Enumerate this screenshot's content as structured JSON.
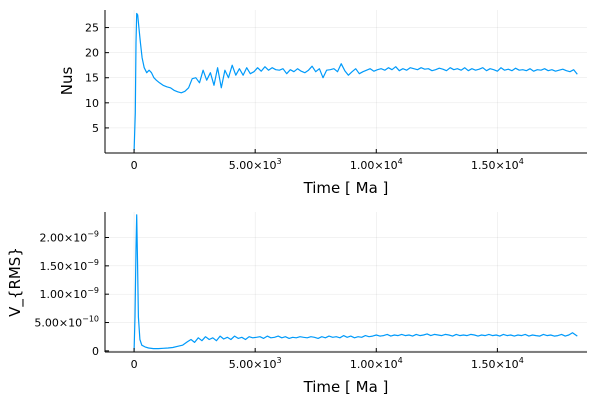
{
  "chart_data": [
    {
      "type": "line",
      "ylabel": "Nus",
      "xlabel": "Time [ Ma ]",
      "series_color": "#009AFA",
      "xlim": [
        -1200,
        18700
      ],
      "ylim": [
        0,
        28.5
      ],
      "grid": true,
      "legend": "none",
      "x_ticks": [
        {
          "value": 0,
          "mant": "0",
          "exp": ""
        },
        {
          "value": 5000,
          "mant": "5.00×10",
          "exp": "3"
        },
        {
          "value": 10000,
          "mant": "1.00×10",
          "exp": "4"
        },
        {
          "value": 15000,
          "mant": "1.50×10",
          "exp": "4"
        }
      ],
      "y_ticks": [
        {
          "value": 5,
          "mant": "5",
          "exp": ""
        },
        {
          "value": 10,
          "mant": "10",
          "exp": ""
        },
        {
          "value": 15,
          "mant": "15",
          "exp": ""
        },
        {
          "value": 20,
          "mant": "20",
          "exp": ""
        },
        {
          "value": 25,
          "mant": "25",
          "exp": ""
        }
      ],
      "x": [
        0,
        50,
        80,
        110,
        150,
        200,
        260,
        330,
        420,
        520,
        620,
        720,
        820,
        920,
        1050,
        1200,
        1350,
        1500,
        1650,
        1800,
        1950,
        2100,
        2250,
        2400,
        2550,
        2700,
        2850,
        3000,
        3150,
        3300,
        3450,
        3600,
        3750,
        3900,
        4050,
        4200,
        4350,
        4500,
        4650,
        4800,
        4950,
        5100,
        5250,
        5400,
        5550,
        5700,
        5850,
        6000,
        6150,
        6300,
        6450,
        6600,
        6750,
        6900,
        7050,
        7200,
        7350,
        7500,
        7650,
        7800,
        7950,
        8100,
        8250,
        8400,
        8550,
        8700,
        8850,
        9000,
        9150,
        9300,
        9450,
        9600,
        9750,
        9900,
        10050,
        10200,
        10350,
        10500,
        10650,
        10800,
        10950,
        11100,
        11250,
        11400,
        11550,
        11700,
        11850,
        12000,
        12150,
        12300,
        12450,
        12600,
        12750,
        12900,
        13050,
        13200,
        13350,
        13500,
        13650,
        13800,
        13950,
        14100,
        14250,
        14400,
        14550,
        14700,
        14850,
        15000,
        15150,
        15300,
        15450,
        15600,
        15750,
        15900,
        16050,
        16200,
        16350,
        16500,
        16650,
        16800,
        16950,
        17100,
        17250,
        17400,
        17550,
        17700,
        17850,
        18000,
        18150,
        18300
      ],
      "y": [
        0.5,
        8,
        22,
        27.8,
        27.5,
        25,
        22,
        19,
        17,
        16,
        16.5,
        16,
        15,
        14.5,
        14,
        13.5,
        13.2,
        13,
        12.5,
        12.2,
        12,
        12.3,
        13,
        14.8,
        15,
        14,
        16.5,
        14.5,
        16,
        13.5,
        17,
        13,
        16.5,
        15,
        17.5,
        15.5,
        16.8,
        15.5,
        17,
        15.8,
        16.2,
        17,
        16.3,
        17.2,
        16.5,
        17,
        16.6,
        16.5,
        16.8,
        15.8,
        16.6,
        16.2,
        16.8,
        16.3,
        16,
        16.5,
        17.3,
        16.2,
        16.8,
        15,
        16.5,
        16.6,
        16.8,
        16.2,
        17.8,
        16.4,
        15.5,
        16.2,
        16.8,
        15.8,
        16.2,
        16.5,
        16.8,
        16.3,
        16.6,
        16.8,
        16.5,
        17,
        16.6,
        17.2,
        16.4,
        16.8,
        16.5,
        17,
        16.8,
        16.6,
        17,
        16.7,
        16.8,
        16.4,
        16.6,
        16.9,
        16.7,
        16.4,
        17,
        16.6,
        16.8,
        16.5,
        17,
        16.4,
        16.8,
        16.5,
        16.7,
        17,
        16.4,
        16.8,
        16.6,
        16.3,
        17,
        16.5,
        16.7,
        16.4,
        16.9,
        16.5,
        16.6,
        16.4,
        16.8,
        16.3,
        16.6,
        16.5,
        16.8,
        16.4,
        16.6,
        16.3,
        16.5,
        16.7,
        16.4,
        16.2,
        16.6,
        15.7
      ]
    },
    {
      "type": "line",
      "ylabel": "V_{RMS}",
      "xlabel": "Time [ Ma ]",
      "series_color": "#009AFA",
      "xlim": [
        -1200,
        18700
      ],
      "ylim": [
        -2e-11,
        2.45e-09
      ],
      "grid": true,
      "legend": "none",
      "x_ticks": [
        {
          "value": 0,
          "mant": "0",
          "exp": ""
        },
        {
          "value": 5000,
          "mant": "5.00×10",
          "exp": "3"
        },
        {
          "value": 10000,
          "mant": "1.00×10",
          "exp": "4"
        },
        {
          "value": 15000,
          "mant": "1.50×10",
          "exp": "4"
        }
      ],
      "y_ticks": [
        {
          "value": 0,
          "mant": "0",
          "exp": ""
        },
        {
          "value": 5e-10,
          "mant": "5.00×10",
          "exp": "−10"
        },
        {
          "value": 1e-09,
          "mant": "1.00×10",
          "exp": "−9"
        },
        {
          "value": 1.5e-09,
          "mant": "1.50×10",
          "exp": "−9"
        },
        {
          "value": 2e-09,
          "mant": "2.00×10",
          "exp": "−9"
        }
      ],
      "x": [
        0,
        40,
        80,
        110,
        140,
        180,
        240,
        320,
        450,
        600,
        800,
        1000,
        1200,
        1400,
        1600,
        1800,
        2000,
        2200,
        2350,
        2500,
        2650,
        2800,
        2950,
        3100,
        3250,
        3400,
        3550,
        3700,
        3850,
        4000,
        4150,
        4300,
        4450,
        4600,
        4750,
        4900,
        5050,
        5200,
        5350,
        5500,
        5650,
        5800,
        5950,
        6100,
        6250,
        6400,
        6550,
        6700,
        6850,
        7000,
        7150,
        7300,
        7450,
        7600,
        7750,
        7900,
        8050,
        8200,
        8350,
        8500,
        8650,
        8800,
        8950,
        9100,
        9250,
        9400,
        9550,
        9700,
        9850,
        10000,
        10150,
        10300,
        10450,
        10600,
        10750,
        10900,
        11050,
        11200,
        11350,
        11500,
        11650,
        11800,
        11950,
        12100,
        12250,
        12400,
        12550,
        12700,
        12850,
        13000,
        13150,
        13300,
        13450,
        13600,
        13750,
        13900,
        14050,
        14200,
        14350,
        14500,
        14650,
        14800,
        14950,
        15100,
        15250,
        15400,
        15550,
        15700,
        15850,
        16000,
        16150,
        16300,
        16450,
        16600,
        16750,
        16900,
        17050,
        17200,
        17350,
        17500,
        17650,
        17800,
        17950,
        18100,
        18300
      ],
      "y": [
        1e-11,
        6e-10,
        1.8e-09,
        2.4e-09,
        1.6e-09,
        6e-10,
        2e-10,
        1e-10,
        7e-11,
        5e-11,
        4e-11,
        4e-11,
        4.5e-11,
        5e-11,
        6e-11,
        8e-11,
        1e-10,
        1.6e-10,
        2e-10,
        1.5e-10,
        2.3e-10,
        1.8e-10,
        2.5e-10,
        2e-10,
        2.3e-10,
        1.8e-10,
        2.6e-10,
        2.1e-10,
        2.4e-10,
        2e-10,
        2.6e-10,
        2.2e-10,
        2.4e-10,
        2e-10,
        2.5e-10,
        2.3e-10,
        2.4e-10,
        2.5e-10,
        2.2e-10,
        2.6e-10,
        2.3e-10,
        2.4e-10,
        2.6e-10,
        2.3e-10,
        2.5e-10,
        2.2e-10,
        2.4e-10,
        2.3e-10,
        2.5e-10,
        2.4e-10,
        2.3e-10,
        2.5e-10,
        2.4e-10,
        2.2e-10,
        2.5e-10,
        2.3e-10,
        2.6e-10,
        2.4e-10,
        2.5e-10,
        2.3e-10,
        2.7e-10,
        2.4e-10,
        2.6e-10,
        2.3e-10,
        2.5e-10,
        2.4e-10,
        2.7e-10,
        2.5e-10,
        2.6e-10,
        2.8e-10,
        2.6e-10,
        2.7e-10,
        2.9e-10,
        2.6e-10,
        2.8e-10,
        2.7e-10,
        2.9e-10,
        2.7e-10,
        2.8e-10,
        2.6e-10,
        2.9e-10,
        2.7e-10,
        2.8e-10,
        3e-10,
        2.7e-10,
        2.9e-10,
        2.8e-10,
        2.7e-10,
        2.9e-10,
        2.8e-10,
        2.6e-10,
        2.9e-10,
        2.7e-10,
        2.8e-10,
        2.7e-10,
        2.9e-10,
        2.8e-10,
        2.6e-10,
        2.8e-10,
        2.7e-10,
        2.9e-10,
        2.7e-10,
        2.8e-10,
        2.6e-10,
        2.9e-10,
        2.7e-10,
        2.8e-10,
        2.6e-10,
        2.8e-10,
        2.7e-10,
        2.9e-10,
        2.6e-10,
        2.8e-10,
        2.7e-10,
        2.6e-10,
        2.9e-10,
        2.7e-10,
        2.8e-10,
        2.6e-10,
        2.7e-10,
        2.9e-10,
        2.6e-10,
        2.8e-10,
        3.2e-10,
        2.6e-10
      ]
    }
  ]
}
